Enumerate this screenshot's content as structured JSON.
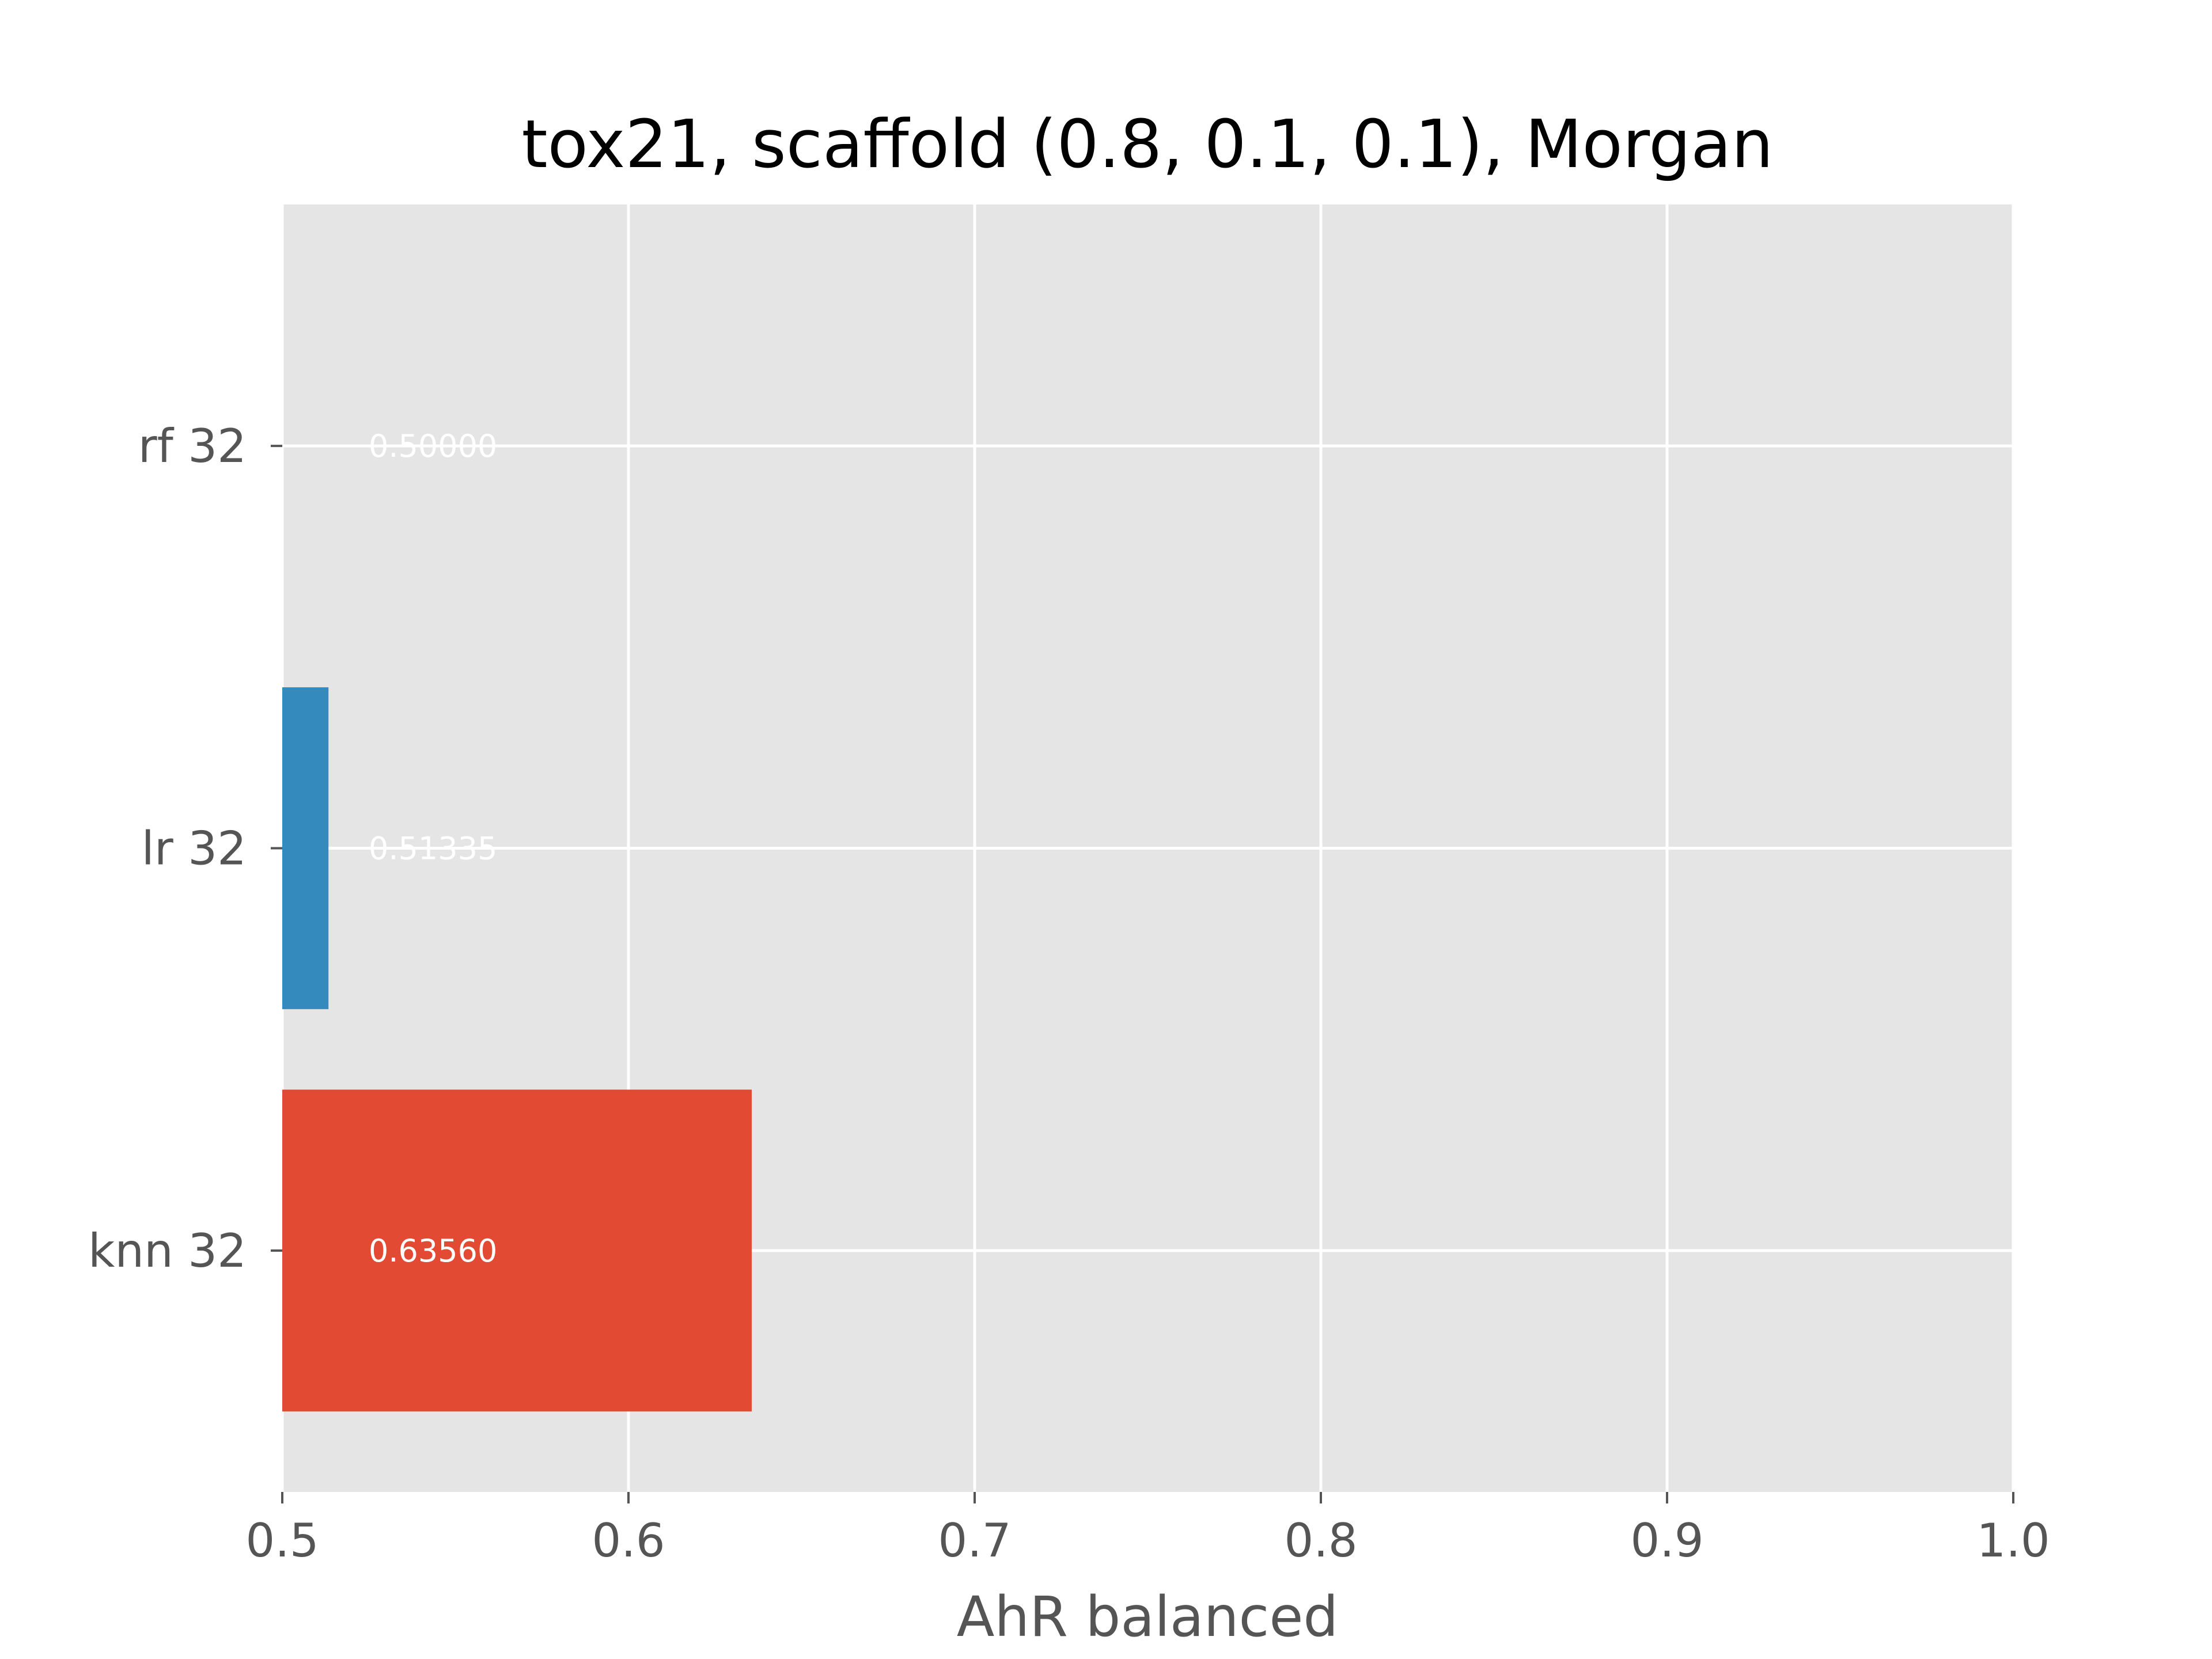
{
  "chart_data": {
    "type": "bar",
    "orientation": "horizontal",
    "title": "tox21, scaffold (0.8, 0.1, 0.1), Morgan",
    "xlabel": "AhR balanced",
    "ylabel": "",
    "categories": [
      "knn 32",
      "lr 32",
      "rf 32"
    ],
    "values": [
      0.6356,
      0.51335,
      0.5
    ],
    "value_labels": [
      "0.63560",
      "0.51335",
      "0.50000"
    ],
    "colors": [
      "#E24A33",
      "#348ABD",
      "#988ED5"
    ],
    "xlim": [
      0.5,
      1.0
    ],
    "xticks": [
      0.5,
      0.6,
      0.7,
      0.8,
      0.9,
      1.0
    ],
    "xtick_labels": [
      "0.5",
      "0.6",
      "0.7",
      "0.8",
      "0.9",
      "1.0"
    ],
    "grid": true,
    "legend": "none",
    "background": "#E5E5E5"
  }
}
